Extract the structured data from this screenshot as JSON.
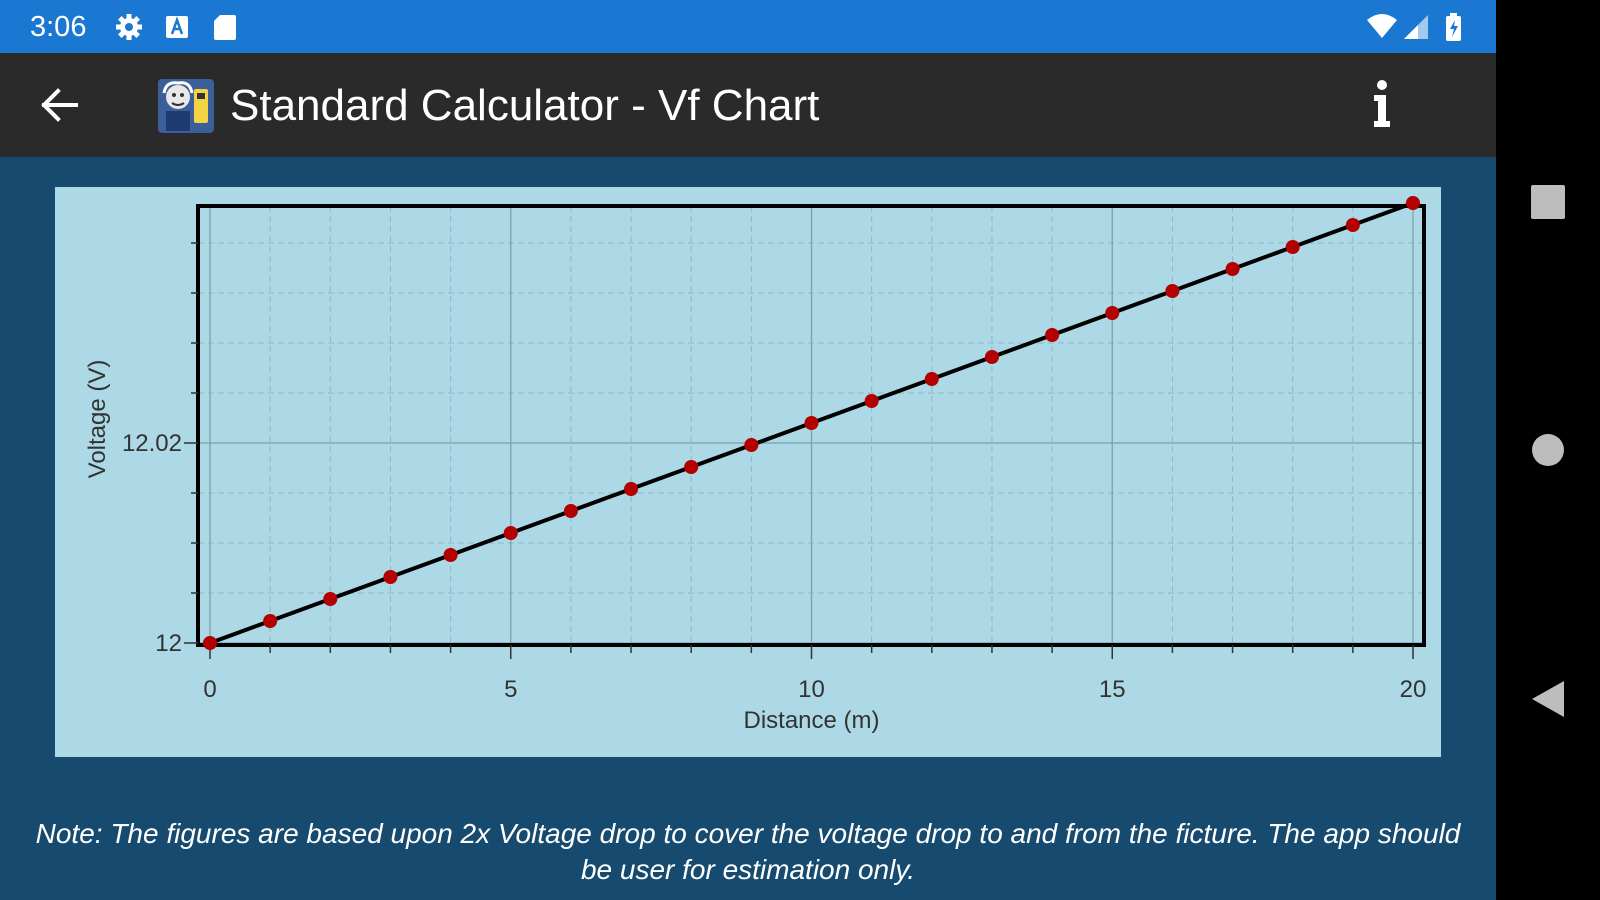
{
  "status_bar": {
    "time": "3:06",
    "icons": [
      "settings-icon",
      "a-badge-icon",
      "sd-card-icon",
      "wifi-icon",
      "signal-icon",
      "battery-icon"
    ],
    "color": "#1a78d2"
  },
  "app_bar": {
    "title": "Standard Calculator - Vf Chart",
    "back_icon": "arrow-left-icon",
    "info_icon": "info-icon",
    "color": "#2a2a2a"
  },
  "chart_data": {
    "type": "line",
    "xlabel": "Distance (m)",
    "ylabel": "Voltage (V)",
    "xlim": [
      0,
      20
    ],
    "ylim": [
      12,
      12.0436
    ],
    "x_ticks": [
      0,
      5,
      10,
      15,
      20
    ],
    "x_tick_labels": [
      "0",
      "5",
      "10",
      "15",
      "20"
    ],
    "y_ticks": [
      12,
      12.02
    ],
    "y_tick_labels": [
      "12",
      "12.02"
    ],
    "grid": true,
    "series": [
      {
        "x": [
          0,
          1,
          2,
          3,
          4,
          5,
          6,
          7,
          8,
          9,
          10,
          11,
          12,
          13,
          14,
          15,
          16,
          17,
          18,
          19,
          20
        ],
        "values": [
          12.0,
          12.0022,
          12.0044,
          12.0066,
          12.0088,
          12.011,
          12.0132,
          12.0154,
          12.0176,
          12.0198,
          12.022,
          12.0242,
          12.0264,
          12.0286,
          12.0308,
          12.033,
          12.0352,
          12.0374,
          12.0396,
          12.0418,
          12.044
        ],
        "line_color": "#000000",
        "marker_color": "#b30000"
      }
    ],
    "background": "#add8e6"
  },
  "note": "Note: The figures are based upon 2x Voltage drop to cover the voltage drop to and from the ficture. The app should be user for estimation only.",
  "nav_bar": {
    "icons": [
      "recents-square-icon",
      "home-circle-icon",
      "back-triangle-icon"
    ]
  }
}
